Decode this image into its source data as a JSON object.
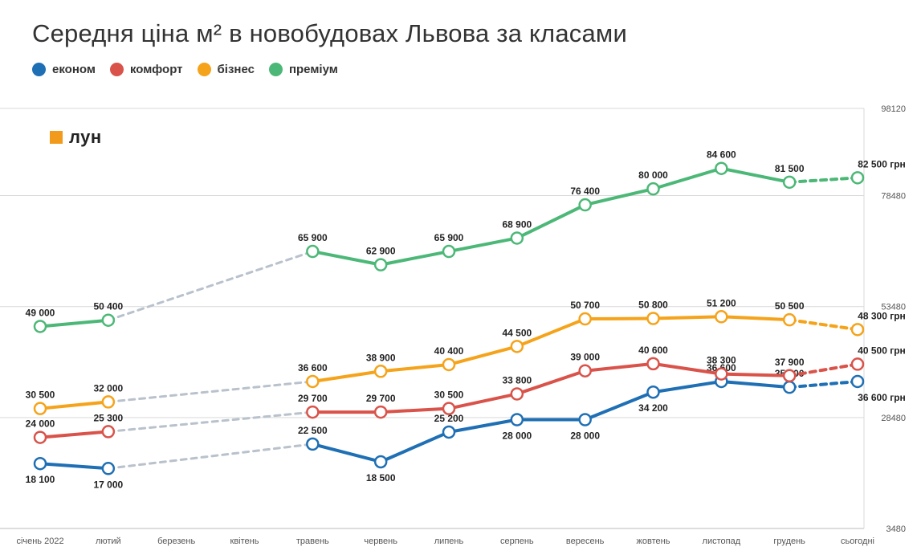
{
  "chart_data": {
    "type": "line",
    "title": "Середня ціна м² в новобудовах Львова за класами",
    "categories": [
      "січень 2022",
      "лютий",
      "березень",
      "квітень",
      "травень",
      "червень",
      "липень",
      "серпень",
      "вересень",
      "жовтень",
      "листопад",
      "грудень",
      "сьогодні"
    ],
    "y_ticks": [
      "98120",
      "78480",
      "53480",
      "28480",
      "3480"
    ],
    "ylim": [
      3480,
      98120
    ],
    "grid": true,
    "legend_position": "top-left",
    "series": [
      {
        "name": "економ",
        "color": "#1f6fb5",
        "values": [
          18100,
          17000,
          null,
          null,
          22500,
          18500,
          25200,
          28000,
          28000,
          34200,
          36600,
          35300,
          36600
        ],
        "labels": [
          "18 100",
          "17 000",
          "",
          "",
          "22 500",
          "18 500",
          "25 200",
          "28 000",
          "28 000",
          "34 200",
          "36 600",
          "35 300",
          "36 600 грн"
        ]
      },
      {
        "name": "комфорт",
        "color": "#d9534a",
        "values": [
          24000,
          25300,
          null,
          null,
          29700,
          29700,
          30500,
          33800,
          39000,
          40600,
          38300,
          37900,
          40500
        ],
        "labels": [
          "24 000",
          "25 300",
          "",
          "",
          "29 700",
          "29 700",
          "30 500",
          "33 800",
          "39 000",
          "40 600",
          "38 300",
          "37 900",
          "40 500 грн"
        ]
      },
      {
        "name": "бізнес",
        "color": "#f5a31a",
        "values": [
          30500,
          32000,
          null,
          null,
          36600,
          38900,
          40400,
          44500,
          50700,
          50800,
          51200,
          50500,
          48300
        ],
        "labels": [
          "30 500",
          "32 000",
          "",
          "",
          "36 600",
          "38 900",
          "40 400",
          "44 500",
          "50 700",
          "50 800",
          "51 200",
          "50 500",
          "48 300 грн"
        ]
      },
      {
        "name": "преміум",
        "color": "#4cb877",
        "values": [
          49000,
          50400,
          null,
          null,
          65900,
          62900,
          65900,
          68900,
          76400,
          80000,
          84600,
          81500,
          82500
        ],
        "labels": [
          "49 000",
          "50 400",
          "",
          "",
          "65 900",
          "62 900",
          "65 900",
          "68 900",
          "76 400",
          "80 000",
          "84 600",
          "81 500",
          "82 500 грн"
        ]
      }
    ]
  },
  "brand": {
    "logo_text": "лун",
    "logo_color": "#f29a1b"
  }
}
